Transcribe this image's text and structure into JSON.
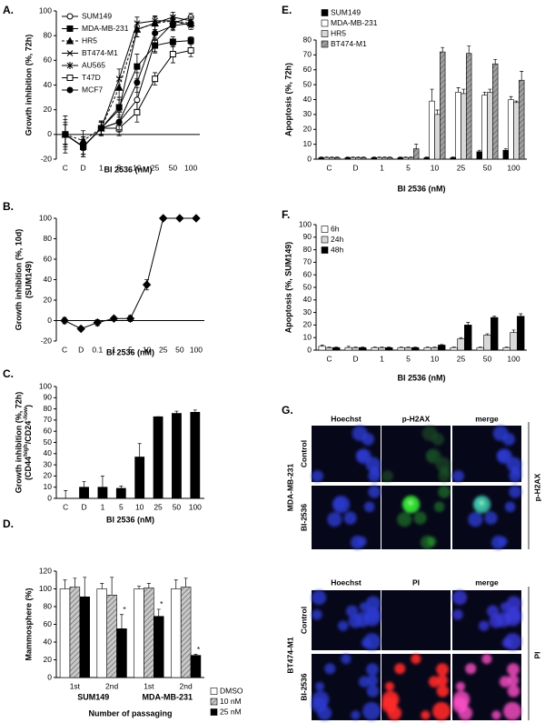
{
  "chart_data": [
    {
      "panel": "A.",
      "type": "line",
      "ylabel": [
        "Growth inhibition (%, 72h)"
      ],
      "xlabel": "BI 2536 (nM)",
      "categories": [
        "C",
        "D",
        "1",
        "5",
        "10",
        "25",
        "50",
        "100"
      ],
      "ylim": [
        -20,
        100
      ],
      "yticks": [
        -20,
        0,
        20,
        40,
        60,
        80,
        100
      ],
      "legend": "top-left",
      "series": [
        {
          "name": "SUM149",
          "color": "#000000",
          "marker": "circle-open",
          "line_style": "solid",
          "values": [
            0,
            -10,
            5,
            10,
            28,
            75,
            90,
            95
          ],
          "errors": [
            8,
            6,
            5,
            8,
            10,
            8,
            5,
            3
          ]
        },
        {
          "name": "MDA-MB-231",
          "color": "#000000",
          "marker": "square-filled",
          "line_style": "solid",
          "values": [
            0,
            -10,
            5,
            22,
            55,
            72,
            75,
            76
          ],
          "errors": [
            8,
            6,
            5,
            8,
            10,
            6,
            4,
            3
          ]
        },
        {
          "name": "HR5",
          "color": "#000000",
          "marker": "triangle-filled",
          "line_style": "dashed",
          "values": [
            0,
            -5,
            5,
            38,
            85,
            90,
            92,
            90
          ],
          "errors": [
            10,
            8,
            5,
            8,
            6,
            5,
            4,
            3
          ]
        },
        {
          "name": "BT474-M1",
          "color": "#000000",
          "marker": "x",
          "line_style": "solid",
          "values": [
            0,
            -10,
            5,
            45,
            90,
            92,
            92,
            88
          ],
          "errors": [
            15,
            8,
            6,
            8,
            5,
            4,
            4,
            3
          ]
        },
        {
          "name": "AU565",
          "color": "#000000",
          "marker": "asterisk",
          "line_style": "solid",
          "values": [
            0,
            -10,
            5,
            20,
            85,
            90,
            95,
            92
          ],
          "errors": [
            12,
            8,
            6,
            8,
            6,
            5,
            4,
            3
          ]
        },
        {
          "name": "T47D",
          "color": "#000000",
          "marker": "square-open",
          "line_style": "solid",
          "values": [
            0,
            -10,
            5,
            5,
            18,
            45,
            65,
            68
          ],
          "errors": [
            8,
            6,
            5,
            6,
            8,
            5,
            7,
            5
          ]
        },
        {
          "name": "MCF7",
          "color": "#000000",
          "marker": "circle-filled",
          "line_style": "solid",
          "values": [
            0,
            -10,
            5,
            10,
            42,
            82,
            88,
            90
          ],
          "errors": [
            8,
            8,
            5,
            6,
            8,
            6,
            4,
            3
          ]
        }
      ]
    },
    {
      "panel": "B.",
      "type": "line",
      "ylabel": [
        "Growth inhibition (%, 10d)",
        "(SUM149)"
      ],
      "xlabel": "BI 2536 (nM)",
      "categories": [
        "C",
        "D",
        "0.1",
        "1",
        "5",
        "10",
        "25",
        "50",
        "100"
      ],
      "ylim": [
        -20,
        100
      ],
      "yticks": [
        -20,
        0,
        20,
        40,
        60,
        80,
        100
      ],
      "series": [
        {
          "color": "#000000",
          "marker": "diamond-filled",
          "line_style": "solid",
          "values": [
            0,
            -8,
            -2,
            2,
            2,
            35,
            100,
            100,
            100
          ],
          "errors": [
            3,
            2,
            3,
            2,
            3,
            5,
            0,
            0,
            0
          ]
        }
      ]
    },
    {
      "panel": "C.",
      "type": "bar",
      "ylabel": [
        "Growth inhibition (%, 72h)",
        [
          "(CD44",
          "high",
          "/CD24",
          "-/low",
          ")"
        ]
      ],
      "xlabel": "BI 2536 (nM)",
      "categories": [
        "C",
        "D",
        "1",
        "5",
        "10",
        "25",
        "50",
        "100"
      ],
      "ylim": [
        0,
        100
      ],
      "yticks": [
        0,
        10,
        20,
        30,
        40,
        50,
        60,
        70,
        80,
        90,
        100
      ],
      "series": [
        {
          "color": "#000000",
          "values": [
            0,
            10,
            10,
            9,
            37,
            73,
            76,
            77
          ],
          "errors": [
            7,
            5,
            10,
            2,
            12,
            0,
            2,
            2
          ]
        }
      ]
    },
    {
      "panel": "D.",
      "type": "bar",
      "ylabel": [
        "Mammosphere (%)"
      ],
      "xlabel": "Number of passaging",
      "categories": [
        "1st",
        "2nd",
        "1st",
        "2nd"
      ],
      "groups": [
        "SUM149",
        "MDA-MB-231"
      ],
      "ylim": [
        0,
        120
      ],
      "yticks": [
        0,
        20,
        40,
        60,
        80,
        100,
        120
      ],
      "legend": "bottom-right",
      "series": [
        {
          "name": "DMSO",
          "color": "#ffffff",
          "values": [
            100,
            100,
            100,
            100
          ],
          "errors": [
            10,
            6,
            3,
            10
          ]
        },
        {
          "name": "10 nM",
          "color": "#c8c8c8",
          "pattern": "hatch",
          "values": [
            102,
            93,
            101,
            102
          ],
          "errors": [
            10,
            20,
            5,
            10
          ]
        },
        {
          "name": "25 nM",
          "color": "#000000",
          "values": [
            91,
            55,
            69,
            25
          ],
          "errors": [
            22,
            16,
            8,
            1
          ],
          "significance": [
            null,
            "*",
            "*",
            "*"
          ]
        }
      ]
    },
    {
      "panel": "E.",
      "type": "bar",
      "ylabel": [
        "Apoptosis (%, 72h)"
      ],
      "xlabel": "BI 2536 (nM)",
      "categories": [
        "C",
        "D",
        "1",
        "5",
        "10",
        "25",
        "50",
        "100"
      ],
      "ylim": [
        0,
        80
      ],
      "yticks": [
        0,
        10,
        20,
        30,
        40,
        50,
        60,
        70,
        80
      ],
      "legend": "top-left",
      "series": [
        {
          "name": "SUM149",
          "color": "#000000",
          "values": [
            1,
            1,
            1,
            1,
            1,
            1,
            5,
            6
          ],
          "errors": [
            0.5,
            0.5,
            0.5,
            0.5,
            0.5,
            0.5,
            1,
            1
          ]
        },
        {
          "name": "MDA-MB-231",
          "color": "#ffffff",
          "values": [
            1,
            1,
            1,
            1,
            39,
            45,
            43,
            40
          ],
          "errors": [
            0.5,
            0.5,
            0.5,
            0.5,
            8,
            3,
            2,
            2
          ]
        },
        {
          "name": "HR5",
          "color": "#d8d8d8",
          "values": [
            1,
            1,
            1,
            1,
            30,
            44,
            45,
            38
          ],
          "errors": [
            0.5,
            0.5,
            0.5,
            0.5,
            3,
            3,
            2,
            1
          ]
        },
        {
          "name": "BT474-M1",
          "color": "#a0a0a0",
          "pattern": "hatch",
          "values": [
            1,
            1,
            1,
            7,
            72,
            71,
            64,
            53
          ],
          "errors": [
            0.5,
            0.5,
            0.5,
            3,
            3,
            5,
            3,
            6
          ]
        }
      ]
    },
    {
      "panel": "F.",
      "type": "bar",
      "ylabel": [
        "Apoptosis (%, SUM149)"
      ],
      "xlabel": "BI 2536 (nM)",
      "categories": [
        "C",
        "D",
        "1",
        "5",
        "10",
        "25",
        "50",
        "100"
      ],
      "ylim": [
        0,
        100
      ],
      "yticks": [
        0,
        10,
        20,
        30,
        40,
        50,
        60,
        70,
        80,
        90,
        100
      ],
      "legend": "top-left",
      "series": [
        {
          "name": "6h",
          "color": "#ffffff",
          "values": [
            3,
            2,
            2,
            2,
            2,
            2,
            2,
            2
          ],
          "errors": [
            1,
            1,
            0.5,
            0.5,
            0.5,
            0.5,
            0.5,
            0.5
          ]
        },
        {
          "name": "24h",
          "color": "#d8d8d8",
          "values": [
            2,
            2,
            2,
            2,
            2,
            9,
            12,
            14
          ],
          "errors": [
            0.5,
            0.5,
            0.5,
            0.5,
            0.5,
            1,
            1,
            2
          ]
        },
        {
          "name": "48h",
          "color": "#000000",
          "values": [
            2,
            2,
            2,
            2,
            4,
            20,
            26,
            27
          ],
          "errors": [
            0.5,
            0.5,
            0.5,
            0.5,
            0.5,
            2,
            1,
            2
          ]
        }
      ]
    }
  ],
  "panel_g": {
    "panel": "G.",
    "blocks": [
      {
        "cell_line": "MDA-MB-231",
        "stain": "p-H2AX",
        "columns": [
          "Hoechst",
          "p-H2AX",
          "merge"
        ],
        "rows": [
          "Control",
          "BI-2536"
        ]
      },
      {
        "cell_line": "BT474-M1",
        "stain": "PI",
        "columns": [
          "Hoechst",
          "PI",
          "merge"
        ],
        "rows": [
          "Control",
          "BI-2536"
        ]
      }
    ]
  }
}
